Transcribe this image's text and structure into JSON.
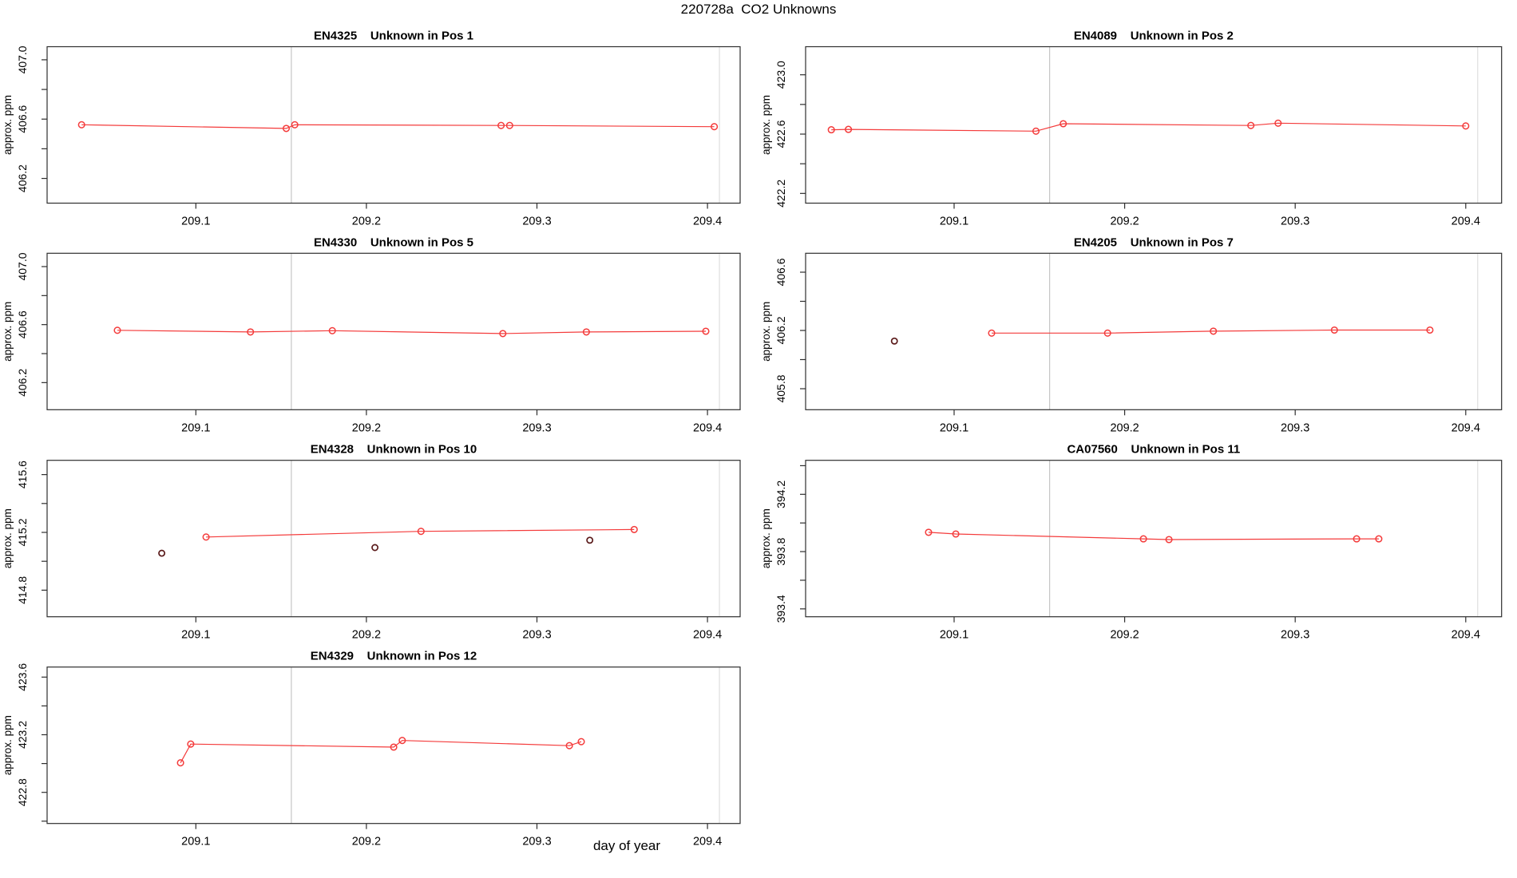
{
  "header": {
    "title": "220728a  CO2 Unknowns"
  },
  "footer": {
    "xlabel": "day of year"
  },
  "chart_data": {
    "type": "line",
    "title": "220728a  CO2 Unknowns",
    "xlabel": "day of year",
    "ylabel": "approx. ppm",
    "x_ticks": [
      {
        "v": 209.1,
        "label": "209.1"
      },
      {
        "v": 209.2,
        "label": "209.2"
      },
      {
        "v": 209.3,
        "label": "209.3"
      },
      {
        "v": 209.4,
        "label": "209.4"
      }
    ],
    "xlim": [
      209.013,
      209.419
    ],
    "vlines": [
      {
        "x": 209.156,
        "color": "#c6c6c6"
      },
      {
        "x": 209.407,
        "color": "#dedede"
      }
    ],
    "colors": {
      "series": "#f43b3b",
      "outlier": "#5a1a1a",
      "axis": "#2e2e2e",
      "text": "#000000"
    },
    "legend": "none",
    "grid": "off",
    "panels": [
      {
        "title": "EN4325   Unknown in Pos 1",
        "row": 0,
        "col": 0,
        "ylim": [
          406.0334,
          407.0883
        ],
        "yticks": [
          {
            "v": 406.2,
            "label": "406.2"
          },
          {
            "v": 406.4
          },
          {
            "v": 406.6,
            "label": "406.6"
          },
          {
            "v": 406.8
          },
          {
            "v": 407.0,
            "label": "407.0"
          }
        ],
        "points": [
          [
            209.033,
            406.562
          ],
          [
            209.153,
            406.537
          ],
          [
            209.158,
            406.562
          ],
          [
            209.279,
            406.557
          ],
          [
            209.284,
            406.557
          ],
          [
            209.404,
            406.549
          ]
        ],
        "outliers": []
      },
      {
        "title": "EN4089   Unknown in Pos 2",
        "row": 0,
        "col": 1,
        "ylim": [
          422.1345,
          423.1894
        ],
        "yticks": [
          {
            "v": 422.2,
            "label": "422.2"
          },
          {
            "v": 422.4
          },
          {
            "v": 422.6,
            "label": "422.6"
          },
          {
            "v": 422.8
          },
          {
            "v": 423.0,
            "label": "423.0"
          }
        ],
        "points": [
          [
            209.028,
            422.629
          ],
          [
            209.038,
            422.632
          ],
          [
            209.148,
            422.62
          ],
          [
            209.164,
            422.67
          ],
          [
            209.274,
            422.658
          ],
          [
            209.29,
            422.674
          ],
          [
            209.4,
            422.655
          ]
        ],
        "outliers": []
      },
      {
        "title": "EN4330   Unknown in Pos 5",
        "row": 1,
        "col": 0,
        "ylim": [
          406.0132,
          407.0919
        ],
        "yticks": [
          {
            "v": 406.2,
            "label": "406.2"
          },
          {
            "v": 406.4
          },
          {
            "v": 406.6,
            "label": "406.6"
          },
          {
            "v": 406.8
          },
          {
            "v": 407.0,
            "label": "407.0"
          }
        ],
        "points": [
          [
            209.054,
            406.561
          ],
          [
            209.132,
            406.549
          ],
          [
            209.18,
            406.558
          ],
          [
            209.28,
            406.538
          ],
          [
            209.329,
            406.549
          ],
          [
            209.399,
            406.554
          ]
        ],
        "outliers": []
      },
      {
        "title": "EN4205   Unknown in Pos 7",
        "row": 1,
        "col": 1,
        "ylim": [
          405.6559,
          406.7299
        ],
        "yticks": [
          {
            "v": 405.8,
            "label": "405.8"
          },
          {
            "v": 406.0
          },
          {
            "v": 406.2,
            "label": "406.2"
          },
          {
            "v": 406.4
          },
          {
            "v": 406.6,
            "label": "406.6"
          }
        ],
        "points": [
          [
            209.122,
            406.182
          ],
          [
            209.19,
            406.182
          ],
          [
            209.252,
            406.195
          ],
          [
            209.323,
            406.203
          ],
          [
            209.379,
            406.203
          ]
        ],
        "outliers": [
          [
            209.065,
            406.127
          ]
        ]
      },
      {
        "title": "EN4328   Unknown in Pos 10",
        "row": 2,
        "col": 0,
        "ylim": [
          414.616,
          415.6989
        ],
        "yticks": [
          {
            "v": 414.8,
            "label": "414.8"
          },
          {
            "v": 415.0
          },
          {
            "v": 415.2,
            "label": "415.2"
          },
          {
            "v": 415.4
          },
          {
            "v": 415.6,
            "label": "415.6"
          }
        ],
        "points": [
          [
            209.106,
            415.168
          ],
          [
            209.232,
            415.207
          ],
          [
            209.357,
            415.22
          ]
        ],
        "outliers": [
          [
            209.08,
            415.056
          ],
          [
            209.205,
            415.095
          ],
          [
            209.331,
            415.146
          ]
        ]
      },
      {
        "title": "CA07560   Unknown in Pos 11",
        "row": 2,
        "col": 1,
        "ylim": [
          393.345,
          394.4375
        ],
        "yticks": [
          {
            "v": 393.4,
            "label": "393.4"
          },
          {
            "v": 393.6
          },
          {
            "v": 393.8,
            "label": "393.8"
          },
          {
            "v": 394.0
          },
          {
            "v": 394.2,
            "label": "394.2"
          },
          {
            "v": 394.4
          }
        ],
        "points": [
          [
            209.085,
            393.935
          ],
          [
            209.101,
            393.923
          ],
          [
            209.211,
            393.889
          ],
          [
            209.226,
            393.884
          ],
          [
            209.336,
            393.889
          ],
          [
            209.349,
            393.889
          ]
        ],
        "outliers": []
      },
      {
        "title": "EN4329   Unknown in Pos 12",
        "row": 3,
        "col": 0,
        "ylim": [
          422.5839,
          423.6698
        ],
        "yticks": [
          {
            "v": 422.6
          },
          {
            "v": 422.8,
            "label": "422.8"
          },
          {
            "v": 423.0
          },
          {
            "v": 423.2,
            "label": "423.2"
          },
          {
            "v": 423.4
          },
          {
            "v": 423.6,
            "label": "423.6"
          }
        ],
        "points": [
          [
            209.091,
            423.005
          ],
          [
            209.097,
            423.135
          ],
          [
            209.216,
            423.114
          ],
          [
            209.221,
            423.16
          ],
          [
            209.319,
            423.124
          ],
          [
            209.326,
            423.152
          ]
        ],
        "outliers": []
      }
    ]
  }
}
